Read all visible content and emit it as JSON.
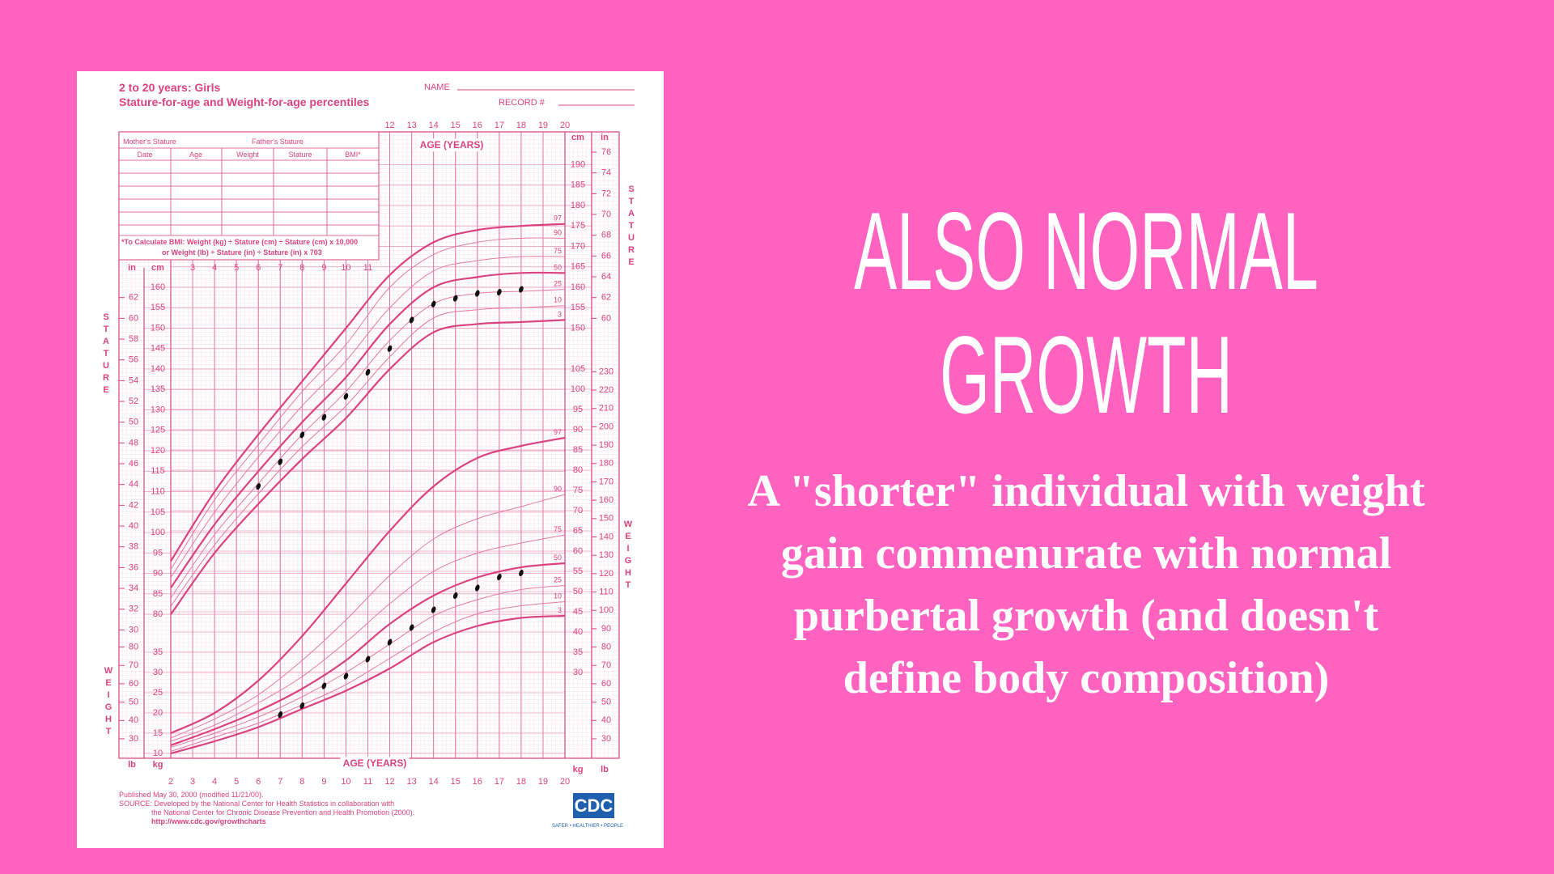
{
  "slide": {
    "title": "ALSO NORMAL GROWTH",
    "body": "A \"shorter\" individual with weight gain commenurate with normal purbertal growth (and doesn't define body composition)"
  },
  "header": {
    "title": "2 to 20 years: Girls",
    "subtitle": "Stature-for-age and Weight-for-age percentiles",
    "name_label": "NAME",
    "record_label": "RECORD #"
  },
  "table": {
    "mothers_stature": "Mother's Stature",
    "fathers_stature": "Father's Stature",
    "columns": [
      "Date",
      "Age",
      "Weight",
      "Stature",
      "BMI*"
    ],
    "note": [
      "*To Calculate BMI: Weight (kg) ÷ Stature (cm) ÷ Stature (cm) x 10,000",
      "or Weight (lb) ÷ Stature (in) ÷ Stature (in) x 703"
    ]
  },
  "footer": {
    "lines": [
      "Published May 30, 2000 (modified 11/21/00).",
      "SOURCE: Developed by the National Center for Health Statistics in collaboration with",
      "the National Center for Chronic Disease Prevention and Health Promotion (2000).",
      "http://www.cdc.gov/growthcharts"
    ],
    "logo": "CDC",
    "tagline": "SAFER • HEALTHIER • PEOPLE"
  },
  "chart_data": [
    {
      "type": "line",
      "axis_label": "STATURE",
      "x_label": "AGE (YEARS)",
      "unit": "cm",
      "alt_unit": "in",
      "x": [
        2,
        4,
        6,
        8,
        10,
        12,
        14,
        16,
        18,
        20
      ],
      "xlim": [
        2,
        20
      ],
      "xticks": [
        12,
        13,
        14,
        15,
        16,
        17,
        18,
        19,
        20
      ],
      "xticks_mid": [
        3,
        4,
        5,
        6,
        7,
        8,
        9,
        10,
        11
      ],
      "ylim": [
        44.8,
        198
      ],
      "alt_ylim": [
        17.64,
        77.95
      ],
      "yticks_left": [
        80,
        85,
        90,
        95,
        100,
        105,
        110,
        115,
        120,
        125,
        130,
        135,
        140,
        145,
        150,
        155,
        160
      ],
      "yticks_right": [
        150,
        155,
        160,
        165,
        170,
        175,
        180,
        185,
        190
      ],
      "alt_yticks_left": [
        30,
        32,
        34,
        36,
        38,
        40,
        42,
        44,
        46,
        48,
        50,
        52,
        54,
        56,
        58,
        60,
        62
      ],
      "alt_yticks_right": [
        60,
        62,
        64,
        66,
        68,
        70,
        72,
        74,
        76
      ],
      "series": [
        {
          "name": "97",
          "color": "#d9437f",
          "values": [
            93,
            110,
            124,
            137,
            150,
            163,
            171,
            174,
            175,
            175.5
          ]
        },
        {
          "name": "90",
          "color": "#e27aa5",
          "values": [
            91,
            108,
            121.5,
            134.5,
            146,
            160,
            168,
            171,
            172,
            172
          ]
        },
        {
          "name": "75",
          "color": "#e27aa5",
          "values": [
            89,
            105,
            118.5,
            131,
            142,
            155,
            164,
            166.5,
            167.5,
            167.5
          ]
        },
        {
          "name": "50",
          "color": "#d9437f",
          "values": [
            86.5,
            102,
            115,
            127,
            138,
            151,
            160,
            162.5,
            163.5,
            163.5
          ]
        },
        {
          "name": "25",
          "color": "#e27aa5",
          "values": [
            84,
            99.5,
            112,
            124,
            134.5,
            147,
            156,
            158.5,
            159,
            159.5
          ]
        },
        {
          "name": "10",
          "color": "#e27aa5",
          "values": [
            82,
            97,
            109.5,
            121,
            131,
            143,
            152.5,
            154.5,
            155,
            155.5
          ]
        },
        {
          "name": "3",
          "color": "#d9437f",
          "values": [
            80,
            95,
            107,
            118,
            128,
            140,
            149,
            151,
            151.5,
            152
          ]
        }
      ],
      "points": {
        "color": "#111111",
        "x": [
          6,
          7,
          8,
          9,
          10,
          11,
          12,
          13,
          14,
          15,
          16,
          17,
          18
        ],
        "values": [
          111.3,
          117.3,
          123.9,
          128.2,
          133.3,
          139.2,
          145,
          152,
          155.9,
          157.3,
          158.5,
          158.8,
          159.5
        ]
      }
    },
    {
      "type": "line",
      "axis_label": "WEIGHT",
      "x_label": "AGE (YEARS)",
      "unit": "kg",
      "alt_unit": "lb",
      "x": [
        2,
        4,
        6,
        8,
        10,
        12,
        14,
        16,
        18,
        20
      ],
      "xlim": [
        2,
        20
      ],
      "xticks": [
        2,
        3,
        4,
        5,
        6,
        7,
        8,
        9,
        10,
        11,
        12,
        13,
        14,
        15,
        16,
        17,
        18,
        19,
        20
      ],
      "ylim": [
        8.8,
        163.6
      ],
      "alt_ylim": [
        19.4,
        360.7
      ],
      "yticks_left": [
        10,
        15,
        20,
        25,
        30,
        35
      ],
      "yticks_right": [
        30,
        35,
        40,
        45,
        50,
        55,
        60,
        65,
        70,
        75,
        80,
        85,
        90,
        95,
        100,
        105
      ],
      "alt_yticks_left": [
        30,
        40,
        50,
        60,
        70,
        80
      ],
      "alt_yticks_right": [
        30,
        40,
        50,
        60,
        70,
        80,
        90,
        100,
        110,
        120,
        130,
        140,
        150,
        160,
        170,
        180,
        190,
        200,
        210,
        220,
        230
      ],
      "series": [
        {
          "name": "97",
          "color": "#d9437f",
          "values": [
            15,
            20,
            28,
            39,
            52,
            65,
            76,
            83,
            86,
            88
          ]
        },
        {
          "name": "90",
          "color": "#e27aa5",
          "values": [
            13.8,
            18.5,
            24.5,
            33,
            43,
            54,
            63,
            68,
            71,
            74
          ]
        },
        {
          "name": "75",
          "color": "#e27aa5",
          "values": [
            13,
            17,
            22.5,
            29,
            37.5,
            47,
            55,
            59.5,
            62,
            64
          ]
        },
        {
          "name": "50",
          "color": "#d9437f",
          "values": [
            12,
            16,
            20.5,
            26,
            33,
            42,
            49,
            53.5,
            56,
            57
          ]
        },
        {
          "name": "25",
          "color": "#e27aa5",
          "values": [
            11.5,
            15,
            19,
            24,
            30,
            37,
            44,
            48,
            50.5,
            51.5
          ]
        },
        {
          "name": "10",
          "color": "#e27aa5",
          "values": [
            10.5,
            14,
            17.5,
            22,
            27,
            33.5,
            40,
            44.5,
            46.5,
            47.5
          ]
        },
        {
          "name": "3",
          "color": "#d9437f",
          "values": [
            10,
            13,
            16.5,
            21,
            25.5,
            31,
            37.5,
            41.5,
            43.5,
            44
          ]
        }
      ],
      "points": {
        "color": "#111111",
        "x": [
          7,
          8,
          9,
          10,
          11,
          12,
          13,
          14,
          15,
          16,
          17,
          18
        ],
        "values": [
          19.6,
          21.8,
          26.7,
          29.1,
          33.3,
          37.5,
          41.1,
          45.5,
          49,
          50.9,
          53.6,
          54.6
        ]
      }
    }
  ]
}
